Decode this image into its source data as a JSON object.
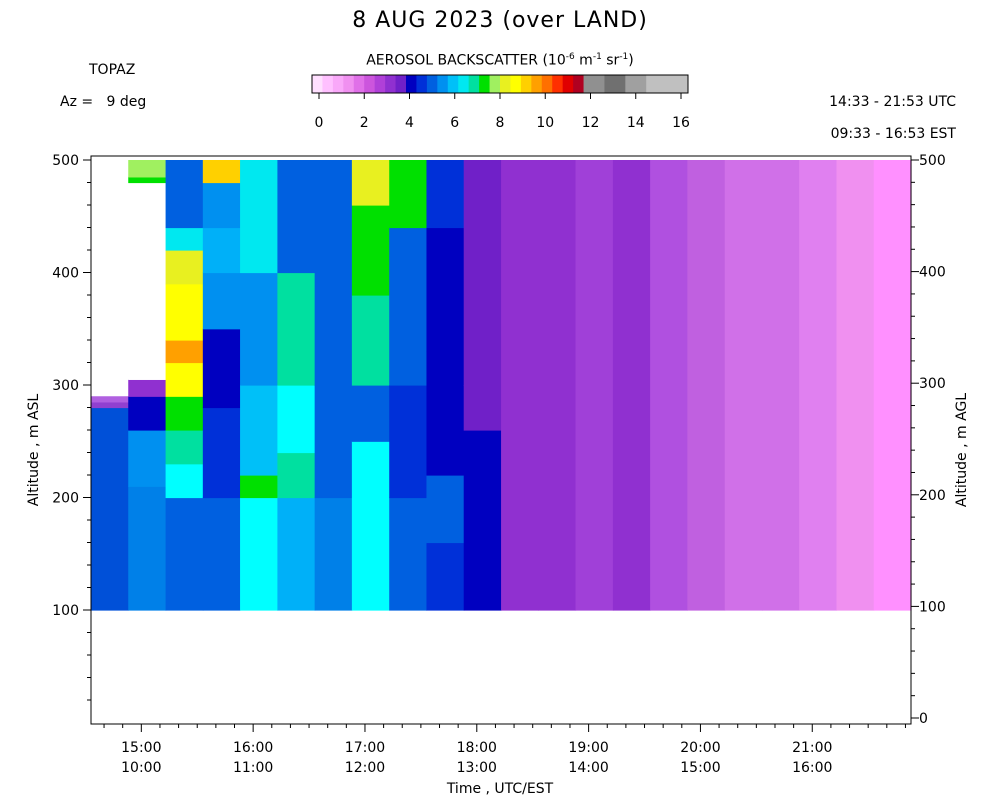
{
  "title": "8 AUG 2023 (over LAND)",
  "station": "TOPAZ",
  "azimuth": "Az =   9 deg",
  "time_range_utc": "14:33 - 21:53 UTC",
  "time_range_est": "09:33 - 16:53 EST",
  "colorbar": {
    "label_prefix": "AEROSOL BACKSCATTER (10",
    "label_exp1": "-6",
    "label_mid1": " m",
    "label_exp2": "-1",
    "label_mid2": " sr",
    "label_exp3": "-1",
    "label_suffix": ")",
    "ticks": [
      "0",
      "2",
      "4",
      "6",
      "8",
      "10",
      "12",
      "14",
      "16"
    ],
    "colors": [
      "#ffe0ff",
      "#ffc0ff",
      "#f9a8f9",
      "#f090f0",
      "#e070e8",
      "#cc55dd",
      "#b040d8",
      "#9030d0",
      "#7020c8",
      "#0000c0",
      "#0030d8",
      "#0060e0",
      "#0090f0",
      "#00c0f8",
      "#00e8f0",
      "#00e0a0",
      "#00e000",
      "#a0f060",
      "#e8f020",
      "#ffff00",
      "#ffd000",
      "#ffa000",
      "#ff7000",
      "#ff3000",
      "#e00000",
      "#b00020",
      "#909090",
      "#909090",
      "#707070",
      "#707070",
      "#a0a0a0",
      "#a0a0a0",
      "#c0c0c0",
      "#c0c0c0",
      "#c0c0c0",
      "#c0c0c0"
    ]
  },
  "chart_data": {
    "type": "heatmap",
    "title": "8 AUG 2023 (over LAND)",
    "ylabel_left": "Altitude , m ASL",
    "ylabel_right": "Altitude , m AGL",
    "xlabel": "Time , UTC/EST",
    "xlim_utc_hours": [
      14.55,
      21.883
    ],
    "ylim_left_m": [
      0,
      500
    ],
    "yticks_left": [
      100,
      200,
      300,
      400,
      500
    ],
    "yticks_right": [
      0,
      100,
      200,
      300,
      400,
      500
    ],
    "xticks_utc": [
      "15:00",
      "16:00",
      "17:00",
      "18:00",
      "19:00",
      "20:00",
      "21:00"
    ],
    "xticks_est": [
      "10:00",
      "11:00",
      "12:00",
      "13:00",
      "14:00",
      "15:00",
      "16:00"
    ],
    "xticks_hours": [
      15,
      16,
      17,
      18,
      19,
      20,
      21
    ],
    "data_altitude_range_m": [
      100,
      500
    ],
    "columns": [
      {
        "start": 14.55,
        "end": 14.883,
        "segments": [
          [
            100,
            280,
            "#0050d8"
          ],
          [
            280,
            285,
            "#9040d0"
          ],
          [
            285,
            290,
            "#b060e0"
          ]
        ]
      },
      {
        "start": 14.883,
        "end": 15.217,
        "segments": [
          [
            100,
            210,
            "#0080e8"
          ],
          [
            210,
            260,
            "#0090f0"
          ],
          [
            260,
            290,
            "#0000c0"
          ],
          [
            290,
            305,
            "#9030d0"
          ],
          [
            305,
            480,
            "#ffffff"
          ],
          [
            480,
            485,
            "#00e000"
          ],
          [
            485,
            500,
            "#a0f060"
          ]
        ]
      },
      {
        "start": 15.217,
        "end": 15.55,
        "segments": [
          [
            100,
            200,
            "#0060e0"
          ],
          [
            200,
            230,
            "#00ffff"
          ],
          [
            230,
            260,
            "#00e0a0"
          ],
          [
            260,
            290,
            "#00e000"
          ],
          [
            290,
            320,
            "#ffff00"
          ],
          [
            320,
            340,
            "#ffa000"
          ],
          [
            340,
            390,
            "#ffff00"
          ],
          [
            390,
            420,
            "#e8f020"
          ],
          [
            420,
            440,
            "#00e8f0"
          ],
          [
            440,
            500,
            "#0060e0"
          ]
        ]
      },
      {
        "start": 15.55,
        "end": 15.883,
        "segments": [
          [
            100,
            200,
            "#0060e0"
          ],
          [
            200,
            280,
            "#0030d8"
          ],
          [
            280,
            350,
            "#0000c0"
          ],
          [
            350,
            400,
            "#0090f0"
          ],
          [
            400,
            440,
            "#00b0f8"
          ],
          [
            440,
            480,
            "#0090f0"
          ],
          [
            480,
            500,
            "#ffd000"
          ]
        ]
      },
      {
        "start": 15.883,
        "end": 16.217,
        "segments": [
          [
            100,
            200,
            "#00ffff"
          ],
          [
            200,
            220,
            "#00e000"
          ],
          [
            220,
            300,
            "#00c0f8"
          ],
          [
            300,
            400,
            "#0090f0"
          ],
          [
            400,
            500,
            "#00e8f0"
          ]
        ]
      },
      {
        "start": 16.217,
        "end": 16.55,
        "segments": [
          [
            100,
            200,
            "#00b0f8"
          ],
          [
            200,
            240,
            "#00e0a0"
          ],
          [
            240,
            300,
            "#00ffff"
          ],
          [
            300,
            400,
            "#00e0a0"
          ],
          [
            400,
            500,
            "#0060e0"
          ]
        ]
      },
      {
        "start": 16.55,
        "end": 16.883,
        "segments": [
          [
            100,
            200,
            "#0080e8"
          ],
          [
            200,
            300,
            "#0060e0"
          ],
          [
            300,
            400,
            "#0060e0"
          ],
          [
            400,
            500,
            "#0060e0"
          ]
        ]
      },
      {
        "start": 16.883,
        "end": 17.217,
        "segments": [
          [
            100,
            250,
            "#00ffff"
          ],
          [
            250,
            300,
            "#0060e0"
          ],
          [
            300,
            380,
            "#00e0a0"
          ],
          [
            380,
            460,
            "#00e000"
          ],
          [
            460,
            500,
            "#e8f020"
          ]
        ]
      },
      {
        "start": 17.217,
        "end": 17.55,
        "segments": [
          [
            100,
            200,
            "#0060e0"
          ],
          [
            200,
            300,
            "#0030d8"
          ],
          [
            300,
            440,
            "#0060e0"
          ],
          [
            440,
            500,
            "#00e000"
          ]
        ]
      },
      {
        "start": 17.55,
        "end": 17.883,
        "segments": [
          [
            100,
            160,
            "#0030d8"
          ],
          [
            160,
            220,
            "#0060e0"
          ],
          [
            220,
            330,
            "#0000c0"
          ],
          [
            330,
            440,
            "#0000c0"
          ],
          [
            440,
            500,
            "#0030d8"
          ]
        ]
      },
      {
        "start": 17.883,
        "end": 18.217,
        "segments": [
          [
            100,
            260,
            "#0000c0"
          ],
          [
            260,
            300,
            "#7020c8"
          ],
          [
            300,
            500,
            "#7020c8"
          ]
        ]
      },
      {
        "start": 18.217,
        "end": 18.55,
        "segments": [
          [
            100,
            500,
            "#9030d0"
          ]
        ]
      },
      {
        "start": 18.55,
        "end": 18.883,
        "segments": [
          [
            100,
            500,
            "#9030d0"
          ]
        ]
      },
      {
        "start": 18.883,
        "end": 19.217,
        "segments": [
          [
            100,
            500,
            "#a040d8"
          ]
        ]
      },
      {
        "start": 19.217,
        "end": 19.55,
        "segments": [
          [
            100,
            500,
            "#9030d0"
          ]
        ]
      },
      {
        "start": 19.55,
        "end": 19.883,
        "segments": [
          [
            100,
            500,
            "#b050e0"
          ]
        ]
      },
      {
        "start": 19.883,
        "end": 20.217,
        "segments": [
          [
            100,
            500,
            "#c060e0"
          ]
        ]
      },
      {
        "start": 20.217,
        "end": 20.55,
        "segments": [
          [
            100,
            500,
            "#d070e8"
          ]
        ]
      },
      {
        "start": 20.55,
        "end": 20.883,
        "segments": [
          [
            100,
            500,
            "#d070e8"
          ]
        ]
      },
      {
        "start": 20.883,
        "end": 21.217,
        "segments": [
          [
            100,
            500,
            "#e080f0"
          ]
        ]
      },
      {
        "start": 21.217,
        "end": 21.55,
        "segments": [
          [
            100,
            500,
            "#f090f0"
          ]
        ]
      },
      {
        "start": 21.55,
        "end": 21.883,
        "segments": [
          [
            100,
            500,
            "#ff90ff"
          ]
        ]
      }
    ]
  }
}
